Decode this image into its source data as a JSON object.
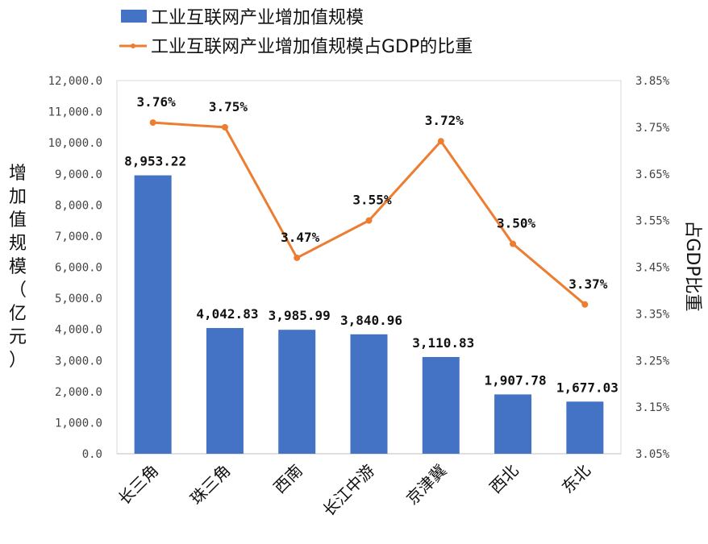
{
  "chart_data": {
    "type": "bar+line",
    "categories": [
      "长三角",
      "珠三角",
      "西南",
      "长江中游",
      "京津冀",
      "西北",
      "东北"
    ],
    "series": [
      {
        "name": "工业互联网产业增加值规模",
        "type": "bar",
        "axis": "left",
        "color": "#4472C4",
        "values": [
          8953.22,
          4042.83,
          3985.99,
          3840.96,
          3110.83,
          1907.78,
          1677.03
        ],
        "labels": [
          "8,953.22",
          "4,042.83",
          "3,985.99",
          "3,840.96",
          "3,110.83",
          "1,907.78",
          "1,677.03"
        ]
      },
      {
        "name": "工业互联网产业增加值规模占GDP的比重",
        "type": "line",
        "axis": "right",
        "color": "#ED7D31",
        "values": [
          3.76,
          3.75,
          3.47,
          3.55,
          3.72,
          3.5,
          3.37
        ],
        "labels": [
          "3.76%",
          "3.75%",
          "3.47%",
          "3.55%",
          "3.72%",
          "3.50%",
          "3.37%"
        ]
      }
    ],
    "ylabel": "增加值规模（亿元）",
    "y2label": "占GDP比重",
    "ylim": [
      0,
      12000
    ],
    "y2lim": [
      3.05,
      3.85
    ],
    "yticks": [
      "12,000.0",
      "11,000.0",
      "10,000.0",
      "9,000.0",
      "8,000.0",
      "7,000.0",
      "6,000.0",
      "5,000.0",
      "4,000.0",
      "3,000.0",
      "2,000.0",
      "1,000.0",
      "0.0"
    ],
    "y2ticks": [
      "3.85%",
      "3.75%",
      "3.65%",
      "3.55%",
      "3.45%",
      "3.35%",
      "3.25%",
      "3.15%",
      "3.05%"
    ],
    "legend_position": "top"
  }
}
